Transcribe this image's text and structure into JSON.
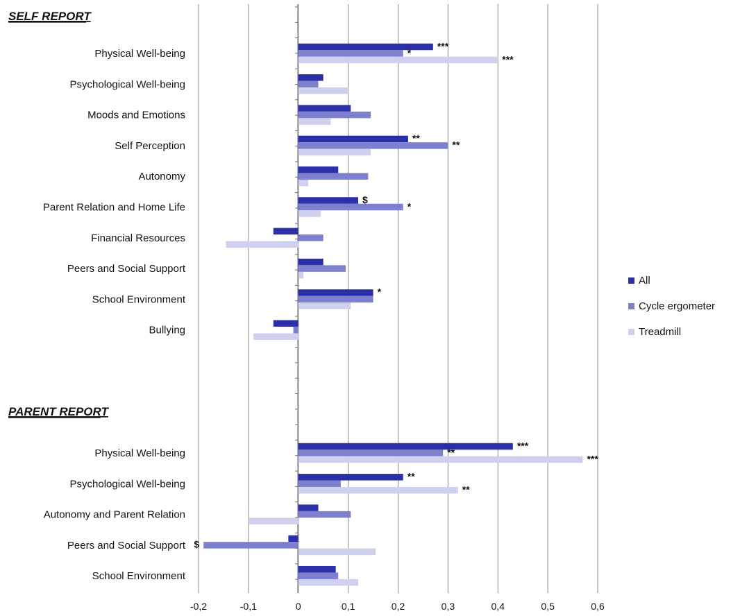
{
  "chart_data": {
    "type": "bar",
    "orientation": "horizontal",
    "grid": "vertical",
    "legend_position": "right",
    "xlim": [
      -0.2,
      0.6
    ],
    "xticks": [
      "-0,2",
      "-0,1",
      "0",
      "0,1",
      "0,2",
      "0,3",
      "0,4",
      "0,5",
      "0,6"
    ],
    "series_names": [
      "All",
      "Cycle ergometer",
      "Treadmill"
    ],
    "colors": [
      "#2b2fa8",
      "#7d80cf",
      "#cfd0ee"
    ],
    "sections": [
      {
        "title": "SELF REPORT",
        "categories": [
          {
            "label": "Physical Well-being",
            "values": [
              0.27,
              0.21,
              0.4
            ],
            "sig": [
              "***",
              "*",
              "***"
            ]
          },
          {
            "label": "Psychological Well-being",
            "values": [
              0.05,
              0.04,
              0.1
            ],
            "sig": [
              "",
              "",
              ""
            ]
          },
          {
            "label": "Moods and Emotions",
            "values": [
              0.105,
              0.145,
              0.065
            ],
            "sig": [
              "",
              "",
              ""
            ]
          },
          {
            "label": "Self Perception",
            "values": [
              0.22,
              0.3,
              0.145
            ],
            "sig": [
              "**",
              "**",
              ""
            ]
          },
          {
            "label": "Autonomy",
            "values": [
              0.08,
              0.14,
              0.02
            ],
            "sig": [
              "",
              "",
              ""
            ]
          },
          {
            "label": "Parent Relation and Home Life",
            "values": [
              0.12,
              0.21,
              0.045
            ],
            "sig": [
              "$",
              "*",
              ""
            ]
          },
          {
            "label": "Financial Resources",
            "values": [
              -0.05,
              0.05,
              -0.145
            ],
            "sig": [
              "",
              "",
              ""
            ]
          },
          {
            "label": "Peers and Social Support",
            "values": [
              0.05,
              0.095,
              0.01
            ],
            "sig": [
              "",
              "",
              ""
            ]
          },
          {
            "label": "School  Environment",
            "values": [
              0.15,
              0.15,
              0.105
            ],
            "sig": [
              "*",
              "",
              ""
            ]
          },
          {
            "label": "Bullying",
            "values": [
              -0.05,
              -0.01,
              -0.09
            ],
            "sig": [
              "",
              "",
              ""
            ]
          }
        ]
      },
      {
        "title": "PARENT REPORT",
        "categories": [
          {
            "label": "Physical Well-being",
            "values": [
              0.43,
              0.29,
              0.57
            ],
            "sig": [
              "***",
              "**",
              "***"
            ]
          },
          {
            "label": "Psychological Well-being",
            "values": [
              0.21,
              0.085,
              0.32
            ],
            "sig": [
              "**",
              "",
              "**"
            ]
          },
          {
            "label": "Autonomy and Parent Relation",
            "values": [
              0.04,
              0.105,
              -0.1
            ],
            "sig": [
              "",
              "",
              ""
            ]
          },
          {
            "label": "Peers and Social Support",
            "values": [
              -0.02,
              -0.19,
              0.155
            ],
            "sig": [
              "",
              "$",
              ""
            ]
          },
          {
            "label": "School  Environment",
            "values": [
              0.075,
              0.08,
              0.12
            ],
            "sig": [
              "",
              "",
              ""
            ]
          }
        ]
      }
    ]
  }
}
